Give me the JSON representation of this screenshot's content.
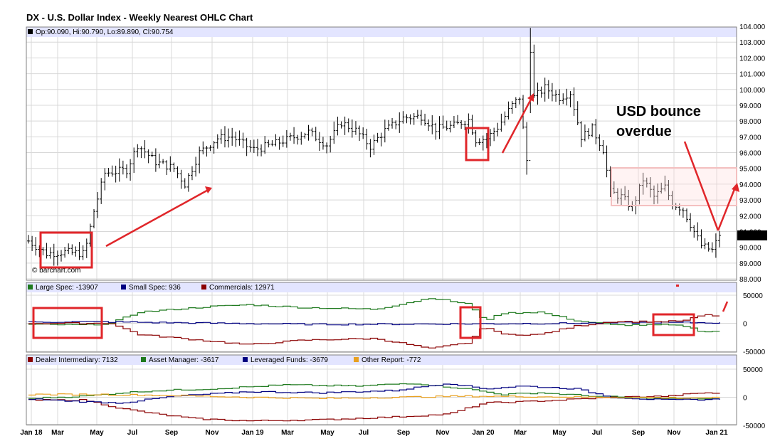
{
  "chart_data": [
    {
      "type": "ohlc",
      "title": "DX - U.S. Dollar Index - Weekly Nearest OHLC Chart",
      "info_label": "Op:90.090, Hi:90.790, Lo:89.890, Cl:90.754",
      "last_price_label": "90.754",
      "last_close": 90.754,
      "watermark": "© barchart.com",
      "ylim": [
        88,
        104
      ],
      "yticks": [
        "104.000",
        "103.000",
        "102.000",
        "101.000",
        "100.000",
        "99.000",
        "98.000",
        "97.000",
        "96.000",
        "95.000",
        "94.000",
        "93.000",
        "92.000",
        "91.000",
        "90.000",
        "89.000",
        "88.000"
      ],
      "x_labels": [
        "Jan 18",
        "Mar",
        "May",
        "Jul",
        "Sep",
        "Nov",
        "Jan 19",
        "Mar",
        "May",
        "Jul",
        "Sep",
        "Nov",
        "Jan 20",
        "Mar",
        "May",
        "Jul",
        "Sep",
        "Nov",
        "Jan 21"
      ],
      "keypoints": [
        [
          0,
          90.4
        ],
        [
          5,
          89.6
        ],
        [
          10,
          89.7
        ],
        [
          15,
          89.6
        ],
        [
          16,
          90.2
        ],
        [
          18,
          92.3
        ],
        [
          21,
          94.7
        ],
        [
          27,
          94.9
        ],
        [
          30,
          96.5
        ],
        [
          35,
          95.4
        ],
        [
          40,
          95.0
        ],
        [
          43,
          94.0
        ],
        [
          47,
          96.0
        ],
        [
          52,
          96.9
        ],
        [
          56,
          97.0
        ],
        [
          60,
          96.4
        ],
        [
          62,
          96.2
        ],
        [
          67,
          96.5
        ],
        [
          72,
          96.9
        ],
        [
          77,
          97.3
        ],
        [
          82,
          96.5
        ],
        [
          86,
          97.9
        ],
        [
          90,
          97.4
        ],
        [
          94,
          96.4
        ],
        [
          98,
          97.4
        ],
        [
          103,
          98.2
        ],
        [
          108,
          98.3
        ],
        [
          112,
          97.5
        ],
        [
          117,
          97.7
        ],
        [
          121,
          98.1
        ],
        [
          123,
          96.8
        ],
        [
          126,
          96.9
        ],
        [
          129,
          97.6
        ],
        [
          133,
          99.0
        ],
        [
          135,
          99.5
        ],
        [
          137,
          95.5
        ],
        [
          138,
          102.6
        ],
        [
          139,
          99.5
        ],
        [
          142,
          100.1
        ],
        [
          146,
          99.5
        ],
        [
          149,
          99.8
        ],
        [
          152,
          97.0
        ],
        [
          155,
          97.5
        ],
        [
          158,
          96.2
        ],
        [
          160,
          93.5
        ],
        [
          163,
          93.2
        ],
        [
          166,
          92.5
        ],
        [
          169,
          94.3
        ],
        [
          172,
          93.2
        ],
        [
          175,
          93.8
        ],
        [
          177,
          92.8
        ],
        [
          180,
          92.4
        ],
        [
          183,
          91.0
        ],
        [
          185,
          90.1
        ],
        [
          188,
          89.8
        ],
        [
          190,
          90.754
        ]
      ],
      "annotation": {
        "line1": "USD bounce",
        "line2": "overdue"
      }
    },
    {
      "type": "step-line",
      "ylim": [
        -50000,
        50000
      ],
      "yticks": [
        "50000",
        "0",
        "-50000"
      ],
      "series": [
        {
          "name": "Large Spec",
          "legend_label": "Large Spec: -13907",
          "color": "#1f7a1f",
          "keypoints": [
            [
              0,
              -2000
            ],
            [
              15,
              -3000
            ],
            [
              22,
              0
            ],
            [
              30,
              20000
            ],
            [
              50,
              30000
            ],
            [
              60,
              33000
            ],
            [
              75,
              28000
            ],
            [
              95,
              25000
            ],
            [
              110,
              45000
            ],
            [
              120,
              35000
            ],
            [
              125,
              5000
            ],
            [
              130,
              18000
            ],
            [
              140,
              20000
            ],
            [
              150,
              5000
            ],
            [
              160,
              -3000
            ],
            [
              175,
              -3000
            ],
            [
              180,
              -5000
            ],
            [
              185,
              -15000
            ],
            [
              190,
              -13907
            ]
          ]
        },
        {
          "name": "Small Spec",
          "legend_label": "Small Spec: 936",
          "color": "#000080",
          "keypoints": [
            [
              0,
              2000
            ],
            [
              15,
              3000
            ],
            [
              40,
              1000
            ],
            [
              80,
              -2000
            ],
            [
              120,
              -1000
            ],
            [
              150,
              0
            ],
            [
              170,
              1500
            ],
            [
              190,
              936
            ]
          ]
        },
        {
          "name": "Commercials",
          "legend_label": "Commercials: 12971",
          "color": "#8b0000",
          "keypoints": [
            [
              0,
              0
            ],
            [
              15,
              0
            ],
            [
              22,
              0
            ],
            [
              30,
              -20000
            ],
            [
              50,
              -32000
            ],
            [
              60,
              -38000
            ],
            [
              75,
              -30000
            ],
            [
              95,
              -27000
            ],
            [
              110,
              -45000
            ],
            [
              120,
              -35000
            ],
            [
              125,
              -5000
            ],
            [
              130,
              -20000
            ],
            [
              140,
              -20000
            ],
            [
              150,
              -5000
            ],
            [
              160,
              3000
            ],
            [
              175,
              3000
            ],
            [
              180,
              5000
            ],
            [
              185,
              15000
            ],
            [
              190,
              12971
            ]
          ]
        }
      ]
    },
    {
      "type": "step-line",
      "ylim": [
        -50000,
        50000
      ],
      "yticks": [
        "50000",
        "0",
        "-50000"
      ],
      "series": [
        {
          "name": "Dealer Intermediary",
          "legend_label": "Dealer Intermediary: 7132",
          "color": "#8b0000",
          "keypoints": [
            [
              0,
              -5000
            ],
            [
              15,
              -5000
            ],
            [
              25,
              -20000
            ],
            [
              35,
              -30000
            ],
            [
              45,
              -38000
            ],
            [
              60,
              -42000
            ],
            [
              80,
              -40000
            ],
            [
              100,
              -35000
            ],
            [
              115,
              -30000
            ],
            [
              125,
              -10000
            ],
            [
              135,
              -8000
            ],
            [
              145,
              -5000
            ],
            [
              160,
              0
            ],
            [
              175,
              2000
            ],
            [
              185,
              8000
            ],
            [
              190,
              7132
            ]
          ]
        },
        {
          "name": "Asset Manager",
          "legend_label": "Asset Manager: -3617",
          "color": "#1f7a1f",
          "keypoints": [
            [
              0,
              -2000
            ],
            [
              15,
              2000
            ],
            [
              25,
              8000
            ],
            [
              35,
              12000
            ],
            [
              50,
              15000
            ],
            [
              70,
              22000
            ],
            [
              90,
              20000
            ],
            [
              105,
              25000
            ],
            [
              120,
              15000
            ],
            [
              130,
              5000
            ],
            [
              140,
              8000
            ],
            [
              155,
              2000
            ],
            [
              170,
              -2000
            ],
            [
              185,
              -3000
            ],
            [
              190,
              -3617
            ]
          ]
        },
        {
          "name": "Leveraged Funds",
          "legend_label": "Leveraged Funds: -3679",
          "color": "#000080",
          "keypoints": [
            [
              0,
              -3000
            ],
            [
              15,
              -8000
            ],
            [
              25,
              -10000
            ],
            [
              40,
              2000
            ],
            [
              60,
              10000
            ],
            [
              80,
              8000
            ],
            [
              100,
              12000
            ],
            [
              115,
              25000
            ],
            [
              125,
              15000
            ],
            [
              135,
              20000
            ],
            [
              150,
              15000
            ],
            [
              160,
              0
            ],
            [
              175,
              -5000
            ],
            [
              185,
              -4000
            ],
            [
              190,
              -3679
            ]
          ]
        },
        {
          "name": "Other Report",
          "legend_label": "Other Report: -772",
          "color": "#e8a020",
          "keypoints": [
            [
              0,
              5000
            ],
            [
              20,
              5000
            ],
            [
              40,
              3000
            ],
            [
              60,
              0
            ],
            [
              80,
              -2000
            ],
            [
              100,
              0
            ],
            [
              120,
              2000
            ],
            [
              140,
              1000
            ],
            [
              160,
              0
            ],
            [
              180,
              -1000
            ],
            [
              190,
              -772
            ]
          ]
        }
      ]
    }
  ],
  "colors": {
    "header_band": "#e3e5ff",
    "annotation_red": "#e0262a",
    "range_box": "#f4c0c0",
    "last_price_bg": "#000000"
  }
}
